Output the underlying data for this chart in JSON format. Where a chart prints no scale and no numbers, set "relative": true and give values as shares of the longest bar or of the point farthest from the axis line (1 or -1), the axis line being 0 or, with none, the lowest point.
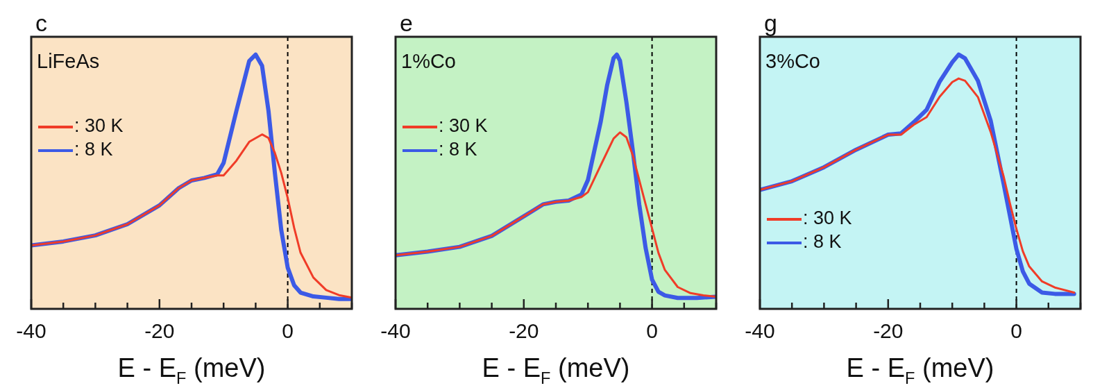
{
  "chart_data": [
    {
      "type": "line",
      "title": "c",
      "annotations": [
        "LiFeAs"
      ],
      "xlabel": "E - E$_{F}$ (meV)",
      "relative": true,
      "xlim": [
        -40,
        10
      ],
      "xticks": [
        -40,
        {
          "value": -35,
          "label": null
        },
        {
          "value": -30,
          "label": null
        },
        {
          "value": -25,
          "label": null
        },
        -20,
        {
          "value": -15,
          "label": null
        },
        {
          "value": -10,
          "label": null
        },
        {
          "value": -5,
          "label": null
        },
        0,
        {
          "value": 5,
          "label": null
        },
        {
          "value": 10,
          "label": null
        }
      ],
      "tick_labels": "x",
      "legend": "top left",
      "ref_lines": [
        {
          "axis": "x",
          "value": 0,
          "line_style": "dashed",
          "color": "#000000"
        }
      ],
      "series": [
        {
          "name": ": 30 K",
          "color": "#f03c28",
          "x": [
            -40,
            -35,
            -30,
            -25,
            -20,
            -17,
            -15,
            -13,
            -11,
            -10,
            -8,
            -6,
            -4,
            -3,
            -2,
            -1,
            0,
            1,
            2,
            4,
            6,
            8,
            10
          ],
          "values": [
            0.25,
            0.265,
            0.289,
            0.333,
            0.407,
            0.475,
            0.505,
            0.515,
            0.525,
            0.525,
            0.583,
            0.657,
            0.686,
            0.672,
            0.613,
            0.534,
            0.436,
            0.319,
            0.221,
            0.123,
            0.074,
            0.054,
            0.044
          ]
        },
        {
          "name": ": 8 K",
          "color": "#3c5ae6",
          "x": [
            -40,
            -35,
            -30,
            -25,
            -20,
            -17,
            -15,
            -13,
            -11,
            -10,
            -8,
            -6,
            -5,
            -4,
            -3,
            -2,
            -1,
            0,
            1,
            2,
            4,
            6,
            8,
            10
          ],
          "values": [
            0.25,
            0.265,
            0.289,
            0.333,
            0.407,
            0.475,
            0.505,
            0.515,
            0.529,
            0.574,
            0.779,
            0.975,
            1,
            0.956,
            0.779,
            0.534,
            0.309,
            0.162,
            0.093,
            0.064,
            0.049,
            0.044,
            0.039,
            0.039
          ]
        }
      ]
    },
    {
      "type": "line",
      "title": "e",
      "annotations": [
        "1%Co"
      ],
      "xlabel": "E - E$_{F}$ (meV)",
      "relative": true,
      "xlim": [
        -40,
        10
      ],
      "xticks": [
        -40,
        {
          "value": -35,
          "label": null
        },
        {
          "value": -30,
          "label": null
        },
        {
          "value": -25,
          "label": null
        },
        -20,
        {
          "value": -15,
          "label": null
        },
        {
          "value": -10,
          "label": null
        },
        {
          "value": -5,
          "label": null
        },
        0,
        {
          "value": 5,
          "label": null
        },
        {
          "value": 10,
          "label": null
        }
      ],
      "tick_labels": "x",
      "legend": "top left",
      "ref_lines": [
        {
          "axis": "x",
          "value": 0,
          "line_style": "dashed",
          "color": "#000000"
        }
      ],
      "series": [
        {
          "name": ": 30 K",
          "color": "#f03c28",
          "x": [
            -40,
            -35,
            -30,
            -25,
            -20,
            -17,
            -15,
            -13,
            -11,
            -10,
            -8,
            -6,
            -5,
            -4,
            -3,
            -2,
            -1,
            0,
            1,
            2,
            4,
            6,
            8,
            10
          ],
          "values": [
            0.211,
            0.225,
            0.244,
            0.287,
            0.364,
            0.411,
            0.421,
            0.426,
            0.44,
            0.459,
            0.565,
            0.67,
            0.694,
            0.675,
            0.603,
            0.507,
            0.411,
            0.316,
            0.22,
            0.153,
            0.086,
            0.062,
            0.053,
            0.048
          ]
        },
        {
          "name": ": 8 K",
          "color": "#3c5ae6",
          "x": [
            -40,
            -35,
            -30,
            -25,
            -20,
            -17,
            -15,
            -13,
            -11,
            -10,
            -8,
            -7,
            -6,
            -5.5,
            -5,
            -4,
            -3,
            -2,
            -1,
            0,
            1,
            2,
            4,
            7,
            10
          ],
          "values": [
            0.211,
            0.225,
            0.244,
            0.287,
            0.364,
            0.411,
            0.421,
            0.426,
            0.45,
            0.507,
            0.737,
            0.88,
            0.986,
            1,
            0.976,
            0.813,
            0.622,
            0.411,
            0.239,
            0.115,
            0.067,
            0.053,
            0.043,
            0.043,
            0.048
          ]
        }
      ]
    },
    {
      "type": "line",
      "title": "g",
      "annotations": [
        "3%Co"
      ],
      "xlabel": "E - E$_{F}$ (meV)",
      "relative": true,
      "xlim": [
        -40,
        10
      ],
      "xticks": [
        -40,
        {
          "value": -35,
          "label": null
        },
        {
          "value": -30,
          "label": null
        },
        {
          "value": -25,
          "label": null
        },
        -20,
        {
          "value": -15,
          "label": null
        },
        {
          "value": -10,
          "label": null
        },
        {
          "value": -5,
          "label": null
        },
        0,
        {
          "value": 5,
          "label": null
        },
        {
          "value": 10,
          "label": null
        }
      ],
      "tick_labels": "x",
      "legend": "bottom left",
      "ref_lines": [
        {
          "axis": "x",
          "value": 0,
          "line_style": "dashed",
          "color": "#000000"
        }
      ],
      "series": [
        {
          "name": ": 30 K",
          "color": "#f03c28",
          "x": [
            -40,
            -35,
            -30,
            -25,
            -20,
            -18,
            -16,
            -14,
            -12,
            -10,
            -9,
            -8,
            -6,
            -4,
            -2,
            -1,
            0,
            1,
            2,
            4,
            6,
            9
          ],
          "values": [
            0.468,
            0.502,
            0.557,
            0.626,
            0.685,
            0.685,
            0.724,
            0.754,
            0.833,
            0.892,
            0.906,
            0.897,
            0.833,
            0.695,
            0.522,
            0.414,
            0.315,
            0.227,
            0.167,
            0.108,
            0.084,
            0.064
          ]
        },
        {
          "name": ": 8 K",
          "color": "#3c5ae6",
          "x": [
            -40,
            -35,
            -30,
            -25,
            -20,
            -18,
            -16,
            -14,
            -12,
            -10,
            -9,
            -8,
            -6,
            -4,
            -2,
            -1,
            0,
            1,
            2,
            4,
            6,
            9
          ],
          "values": [
            0.468,
            0.502,
            0.557,
            0.626,
            0.685,
            0.69,
            0.734,
            0.783,
            0.892,
            0.97,
            1,
            0.985,
            0.897,
            0.739,
            0.493,
            0.365,
            0.236,
            0.148,
            0.099,
            0.064,
            0.059,
            0.059
          ]
        }
      ]
    }
  ]
}
